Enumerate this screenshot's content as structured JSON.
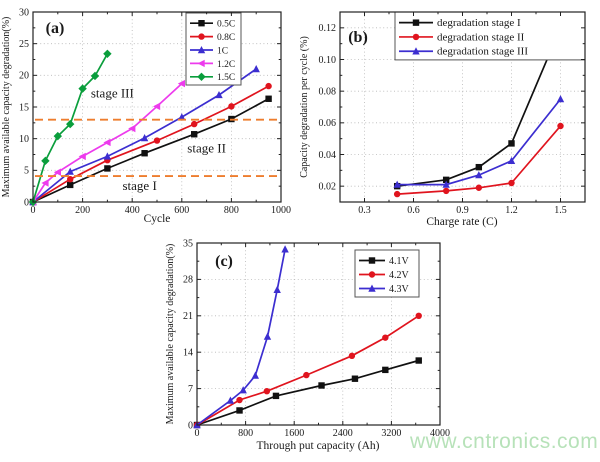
{
  "watermark": {
    "text": "www.cntronics.com",
    "color": "#b7e2b9"
  },
  "chart_data": [
    {
      "type": "line",
      "panel_label": "(a)",
      "xlabel": "Cycle",
      "ylabel": "Maximum available capacity degradation(%)",
      "xlim": [
        0,
        1000
      ],
      "ylim": [
        0,
        30
      ],
      "xticks": [
        0,
        200,
        400,
        600,
        800,
        1000
      ],
      "xtick_labels": [
        "0",
        "200",
        "400",
        "600",
        "800",
        "1000"
      ],
      "yticks": [
        0,
        5,
        10,
        15,
        20,
        25,
        30
      ],
      "ytick_labels": [
        "0",
        "5",
        "10",
        "15",
        "20",
        "25",
        "30"
      ],
      "grid": true,
      "legend_position": "top-right",
      "series": [
        {
          "name": "0.5C",
          "color": "#111111",
          "marker": "square",
          "points": [
            [
              0,
              0
            ],
            [
              150,
              2.7
            ],
            [
              300,
              5.3
            ],
            [
              450,
              7.7
            ],
            [
              650,
              10.7
            ],
            [
              800,
              13.1
            ],
            [
              950,
              16.3
            ]
          ]
        },
        {
          "name": "0.8C",
          "color": "#e0141e",
          "marker": "circle",
          "points": [
            [
              0,
              0
            ],
            [
              150,
              3.6
            ],
            [
              300,
              6.6
            ],
            [
              500,
              9.7
            ],
            [
              650,
              12.3
            ],
            [
              800,
              15.1
            ],
            [
              950,
              18.3
            ]
          ]
        },
        {
          "name": "1C",
          "color": "#3c2ed0",
          "marker": "triangle",
          "points": [
            [
              0,
              0
            ],
            [
              150,
              4.8
            ],
            [
              300,
              7.2
            ],
            [
              450,
              10.1
            ],
            [
              600,
              13.4
            ],
            [
              750,
              16.9
            ],
            [
              900,
              21.0
            ]
          ]
        },
        {
          "name": "1.2C",
          "color": "#ed3bed",
          "marker": "triangle-left",
          "points": [
            [
              0,
              0
            ],
            [
              50,
              3.0
            ],
            [
              100,
              4.7
            ],
            [
              200,
              7.2
            ],
            [
              300,
              9.4
            ],
            [
              400,
              11.6
            ],
            [
              500,
              15.1
            ],
            [
              600,
              18.7
            ]
          ]
        },
        {
          "name": "1.5C",
          "color": "#0a9e3c",
          "marker": "diamond",
          "points": [
            [
              0,
              0
            ],
            [
              50,
              6.5
            ],
            [
              100,
              10.4
            ],
            [
              150,
              12.3
            ],
            [
              200,
              17.9
            ],
            [
              250,
              19.9
            ],
            [
              300,
              23.4
            ]
          ]
        }
      ],
      "annotations": {
        "dashed_hlines": [
          {
            "y": 4.1,
            "color": "#ee7d2e"
          },
          {
            "y": 13.0,
            "color": "#ee7d2e"
          }
        ],
        "text_labels": [
          {
            "text": "stage I",
            "x": 430,
            "y": 1.9
          },
          {
            "text": "stage II",
            "x": 700,
            "y": 7.8
          },
          {
            "text": "stage III",
            "x": 320,
            "y": 16.5
          }
        ]
      }
    },
    {
      "type": "line",
      "panel_label": "(b)",
      "xlabel": "Charge rate (C)",
      "ylabel": "Capacity degradation per cycle (%)",
      "xlim": [
        0.15,
        1.65
      ],
      "ylim": [
        0.01,
        0.13
      ],
      "xticks": [
        0.3,
        0.6,
        0.9,
        1.2,
        1.5
      ],
      "xtick_labels": [
        "0.3",
        "0.6",
        "0.9",
        "1.2",
        "1.5"
      ],
      "yticks": [
        0.02,
        0.04,
        0.06,
        0.08,
        0.1,
        0.12
      ],
      "ytick_labels": [
        "0.02",
        "0.04",
        "0.06",
        "0.08",
        "0.10",
        "0.12"
      ],
      "grid": true,
      "legend_position": "top-left",
      "series": [
        {
          "name": "degradation stage I",
          "color": "#111111",
          "marker": "square",
          "points": [
            [
              0.5,
              0.02
            ],
            [
              0.8,
              0.024
            ],
            [
              1.0,
              0.032
            ],
            [
              1.2,
              0.047
            ],
            [
              1.5,
              0.12
            ]
          ]
        },
        {
          "name": "degradation stage II",
          "color": "#e0141e",
          "marker": "circle",
          "points": [
            [
              0.5,
              0.015
            ],
            [
              0.8,
              0.017
            ],
            [
              1.0,
              0.019
            ],
            [
              1.2,
              0.022
            ],
            [
              1.5,
              0.058
            ]
          ]
        },
        {
          "name": "degradation stage III",
          "color": "#3c2ed0",
          "marker": "triangle",
          "points": [
            [
              0.5,
              0.021
            ],
            [
              0.8,
              0.021
            ],
            [
              1.0,
              0.027
            ],
            [
              1.2,
              0.036
            ],
            [
              1.5,
              0.075
            ]
          ]
        }
      ],
      "annotations": {
        "dashed_hlines": [],
        "text_labels": []
      }
    },
    {
      "type": "line",
      "panel_label": "(c)",
      "xlabel": "Through put capacity (Ah)",
      "ylabel": "Maximum available capacity degradation(%)",
      "xlim": [
        0,
        4000
      ],
      "ylim": [
        0,
        35
      ],
      "xticks": [
        0,
        800,
        1600,
        2400,
        3200,
        4000
      ],
      "xtick_labels": [
        "0",
        "800",
        "1600",
        "2400",
        "3200",
        "4000"
      ],
      "yticks": [
        0,
        7,
        14,
        21,
        28,
        35
      ],
      "ytick_labels": [
        "0",
        "7",
        "14",
        "21",
        "28",
        "35"
      ],
      "grid": true,
      "legend_position": "top-right",
      "series": [
        {
          "name": "4.1V",
          "color": "#111111",
          "marker": "square",
          "points": [
            [
              0,
              0
            ],
            [
              700,
              2.8
            ],
            [
              1300,
              5.6
            ],
            [
              2050,
              7.6
            ],
            [
              2600,
              8.9
            ],
            [
              3100,
              10.6
            ],
            [
              3650,
              12.4
            ]
          ]
        },
        {
          "name": "4.2V",
          "color": "#e0141e",
          "marker": "circle",
          "points": [
            [
              0,
              0
            ],
            [
              700,
              4.8
            ],
            [
              1150,
              6.5
            ],
            [
              1800,
              9.6
            ],
            [
              2550,
              13.3
            ],
            [
              3100,
              16.8
            ],
            [
              3650,
              21.0
            ]
          ]
        },
        {
          "name": "4.3V",
          "color": "#3c2ed0",
          "marker": "triangle",
          "points": [
            [
              0,
              0
            ],
            [
              550,
              4.7
            ],
            [
              760,
              6.7
            ],
            [
              960,
              9.5
            ],
            [
              1160,
              17.0
            ],
            [
              1320,
              26.0
            ],
            [
              1450,
              33.8
            ]
          ]
        }
      ],
      "annotations": {
        "dashed_hlines": [],
        "text_labels": []
      }
    }
  ]
}
